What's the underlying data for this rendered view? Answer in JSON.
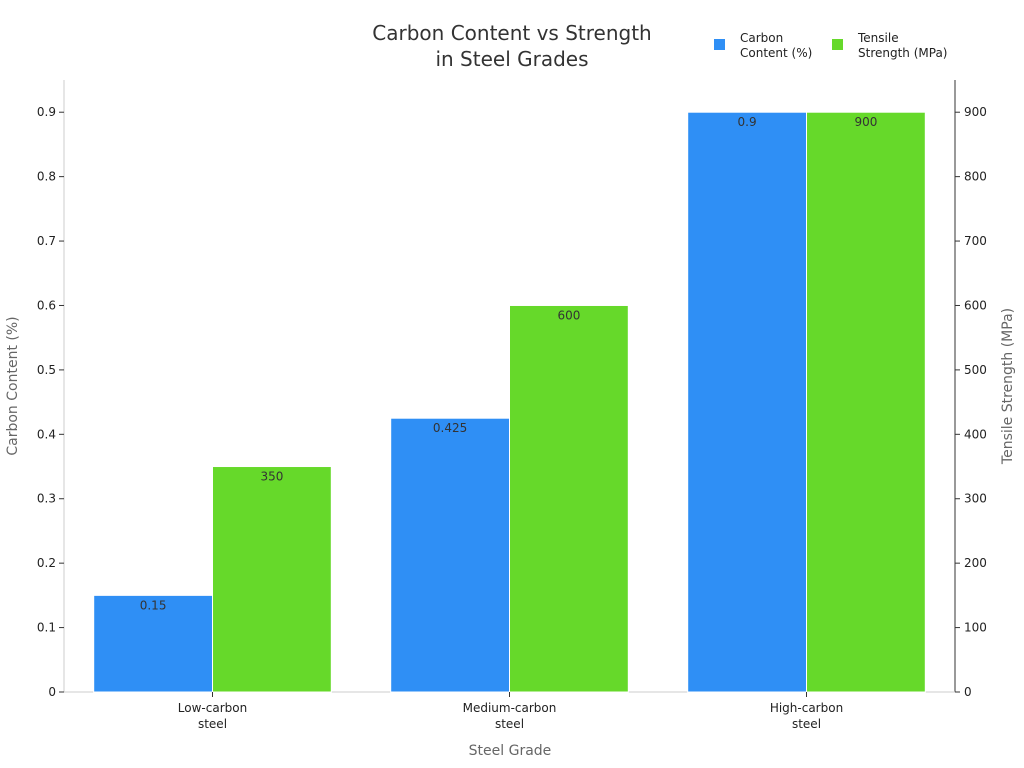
{
  "chart_data": {
    "type": "bar",
    "title_lines": [
      "Carbon Content vs Strength",
      "in Steel Grades"
    ],
    "categories": [
      [
        "Low-carbon",
        "steel"
      ],
      [
        "Medium-carbon",
        "steel"
      ],
      [
        "High-carbon",
        "steel"
      ]
    ],
    "xlabel": "Steel Grade",
    "ylabel_left": "Carbon Content (%)",
    "ylabel_right": "Tensile Strength (MPa)",
    "ylim_left": [
      0,
      0.95
    ],
    "ylim_right": [
      0,
      950
    ],
    "yticks_left": [
      "0",
      "0.1",
      "0.2",
      "0.3",
      "0.4",
      "0.5",
      "0.6",
      "0.7",
      "0.8",
      "0.9"
    ],
    "yticks_right": [
      "0",
      "100",
      "200",
      "300",
      "400",
      "500",
      "600",
      "700",
      "800",
      "900"
    ],
    "legend_position": "top-right",
    "grid": false,
    "series": [
      {
        "name_lines": [
          "Carbon",
          "Content (%)"
        ],
        "axis": "left",
        "color": "#2f8ff5",
        "values": [
          0.15,
          0.425,
          0.9
        ],
        "labels": [
          "0.15",
          "0.425",
          "0.9"
        ]
      },
      {
        "name_lines": [
          "Tensile",
          "Strength (MPa)"
        ],
        "axis": "right",
        "color": "#66d92a",
        "values": [
          350,
          600,
          900
        ],
        "labels": [
          "350",
          "600",
          "900"
        ]
      }
    ]
  }
}
